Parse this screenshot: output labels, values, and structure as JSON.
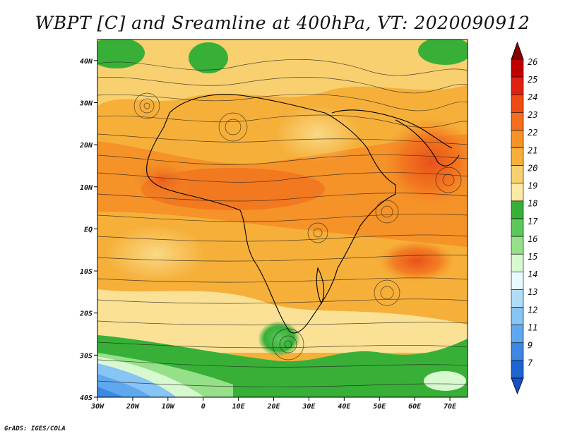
{
  "title": "WBPT [C] and Sreamline at 400hPa, VT: 2020090912",
  "footer": "GrADS: IGES/COLA",
  "map": {
    "lon_ticks": [
      "30W",
      "20W",
      "10W",
      "0",
      "10E",
      "20E",
      "30E",
      "40E",
      "50E",
      "60E",
      "70E"
    ],
    "lat_ticks": [
      "40S",
      "30S",
      "20S",
      "10S",
      "EQ",
      "10N",
      "20N",
      "30N",
      "40N"
    ],
    "lon_range": [
      -30,
      75
    ],
    "lat_range": [
      -40,
      45
    ]
  },
  "colorbar": {
    "levels": [
      "26",
      "25",
      "24",
      "23",
      "22",
      "21",
      "20",
      "19",
      "18",
      "17",
      "16",
      "15",
      "14",
      "13",
      "12",
      "11",
      "9",
      "7"
    ],
    "colors": [
      "#c00000",
      "#e02010",
      "#f04a14",
      "#f46e1e",
      "#f59228",
      "#f6b03a",
      "#f8d070",
      "#fbeaa6",
      "#38b038",
      "#5cc85a",
      "#96e08a",
      "#d8f8d0",
      "#e8fafd",
      "#b0dcf8",
      "#88c4f4",
      "#60a8ee",
      "#3c88e2",
      "#1c64d2"
    ],
    "top_arrow_color": "#8b0000",
    "bottom_arrow_color": "#1450c8"
  },
  "chart_data": {
    "type": "heatmap",
    "title": "WBPT [C] and Sreamline at 400hPa, VT: 2020090912",
    "x_ticks": [
      "30W",
      "20W",
      "10W",
      "0",
      "10E",
      "20E",
      "30E",
      "40E",
      "50E",
      "60E",
      "70E"
    ],
    "y_ticks": [
      "40S",
      "30S",
      "20S",
      "10S",
      "EQ",
      "10N",
      "20N",
      "30N",
      "40N"
    ],
    "color_levels": [
      7,
      9,
      11,
      12,
      13,
      14,
      15,
      16,
      17,
      18,
      19,
      20,
      21,
      22,
      23,
      24,
      25,
      26
    ],
    "value_range": [
      7,
      26
    ]
  }
}
